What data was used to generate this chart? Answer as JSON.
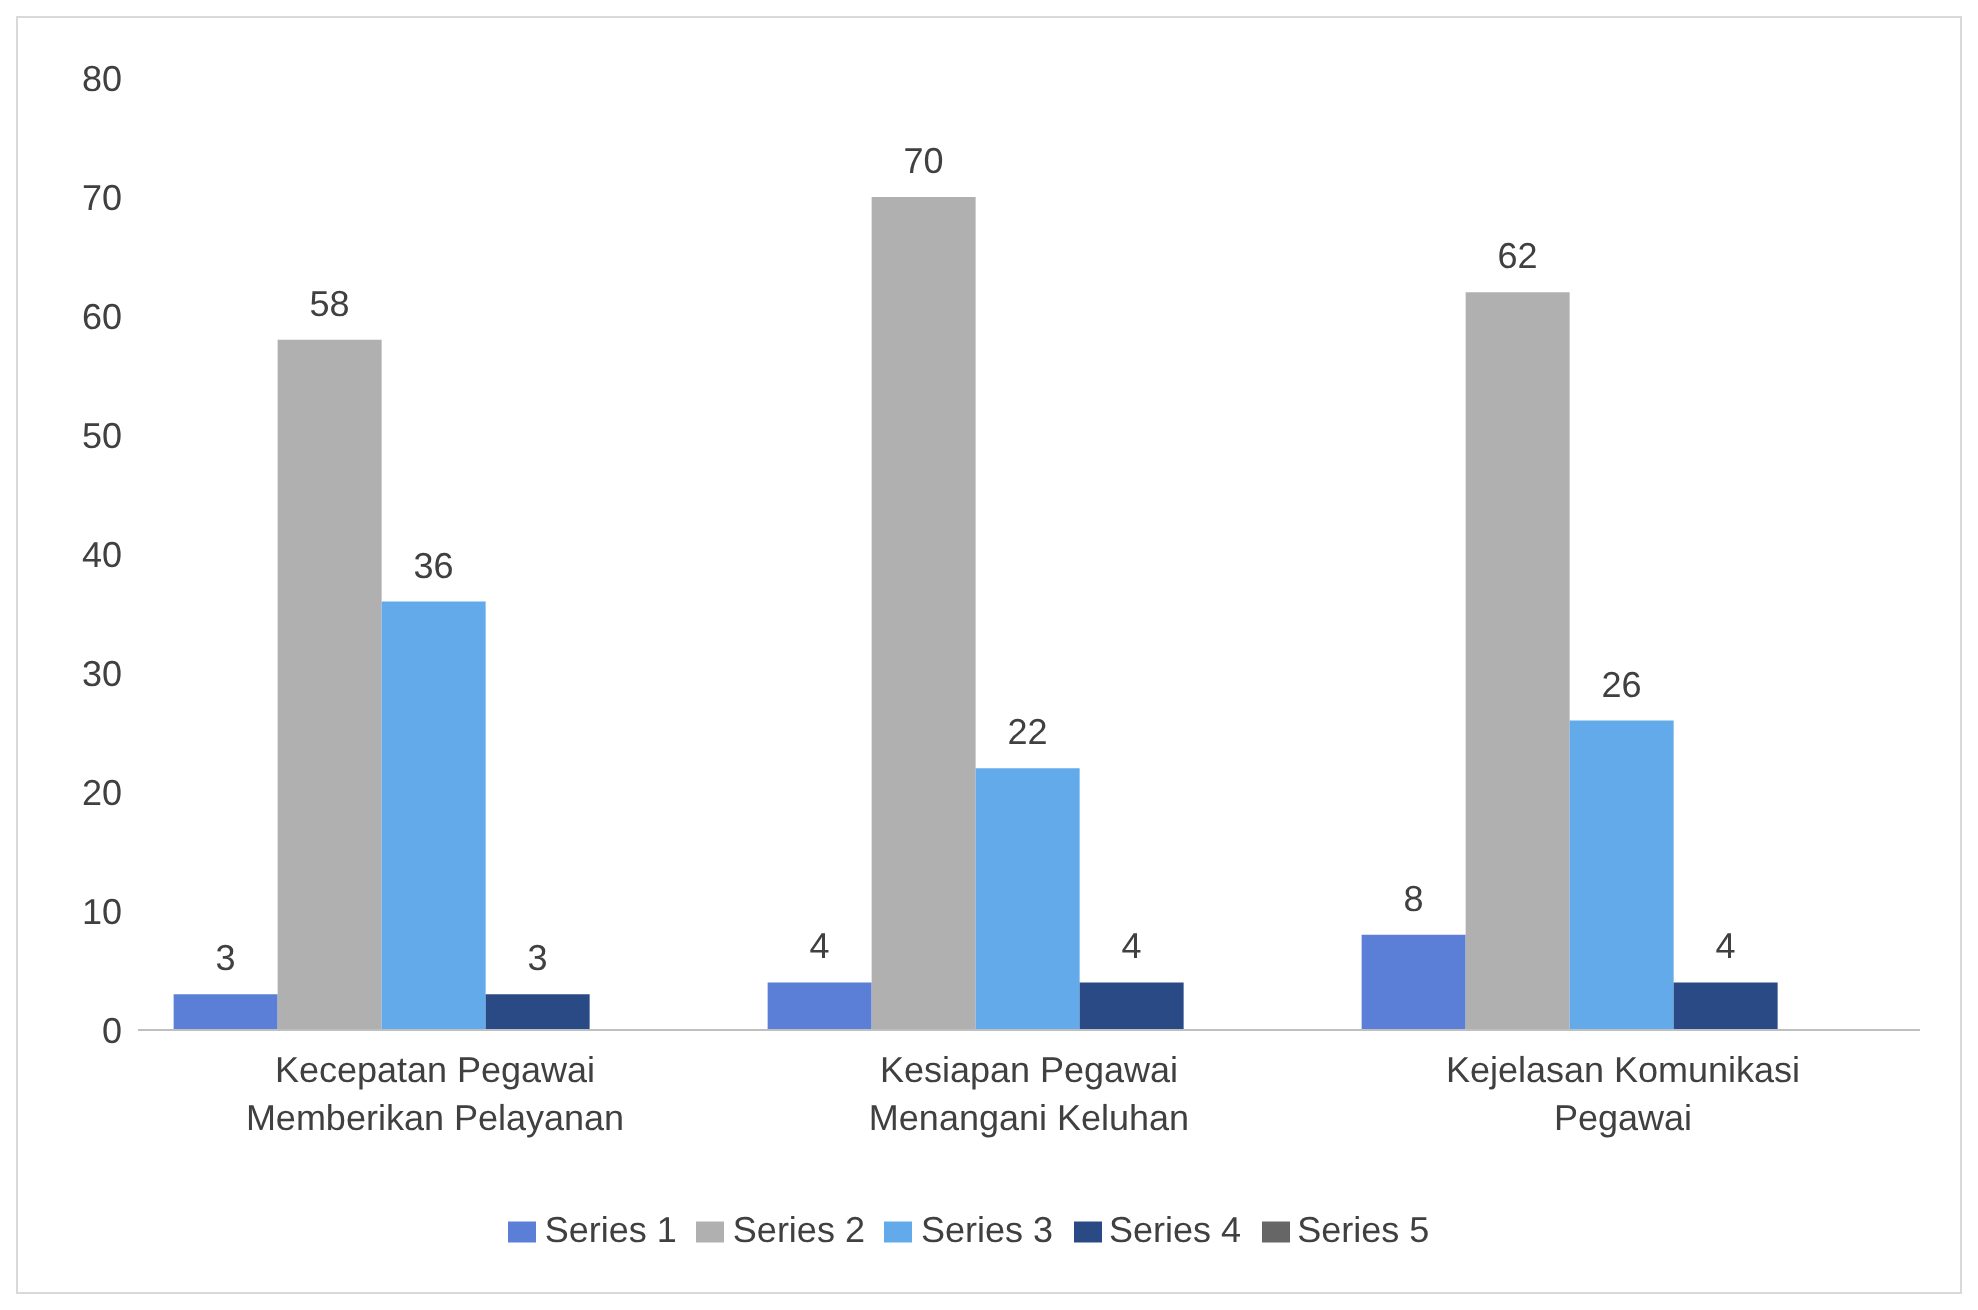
{
  "chart_data": {
    "type": "bar",
    "categories": [
      "Kecepatan Pegawai Memberikan Pelayanan",
      "Kesiapan Pegawai Menangani Keluhan",
      "Kejelasan Komunikasi Pegawai"
    ],
    "series": [
      {
        "name": "Series 1",
        "color": "#5b7fd6",
        "values": [
          3,
          4,
          8
        ]
      },
      {
        "name": "Series 2",
        "color": "#b0b0b0",
        "values": [
          58,
          70,
          62
        ]
      },
      {
        "name": "Series 3",
        "color": "#63aaea",
        "values": [
          36,
          22,
          26
        ]
      },
      {
        "name": "Series 4",
        "color": "#2a4a86",
        "values": [
          3,
          4,
          4
        ]
      },
      {
        "name": "Series 5",
        "color": "#666666",
        "values": [
          null,
          null,
          null
        ]
      }
    ],
    "ylim": [
      0,
      80
    ],
    "yticks": [
      0,
      10,
      20,
      30,
      40,
      50,
      60,
      70,
      80
    ],
    "grid": false,
    "legend": "bottom",
    "data_labels": true
  }
}
